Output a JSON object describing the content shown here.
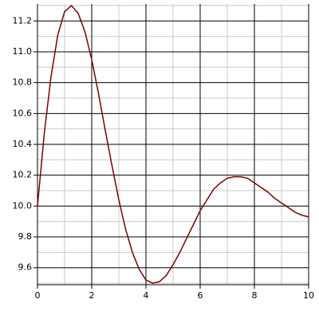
{
  "chart_data": {
    "type": "line",
    "x": [
      0,
      0.25,
      0.5,
      0.75,
      1,
      1.25,
      1.5,
      1.75,
      2,
      2.25,
      2.5,
      2.75,
      3,
      3.25,
      3.5,
      3.75,
      4,
      4.25,
      4.5,
      4.75,
      5,
      5.25,
      5.5,
      5.75,
      6,
      6.25,
      6.5,
      6.75,
      7,
      7.25,
      7.5,
      7.75,
      8,
      8.25,
      8.5,
      8.75,
      9,
      9.25,
      9.5,
      9.75,
      10
    ],
    "series": [
      {
        "color": "#7a0000",
        "values": [
          10.0,
          10.47,
          10.84,
          11.11,
          11.26,
          11.3,
          11.25,
          11.13,
          10.95,
          10.73,
          10.49,
          10.26,
          10.04,
          9.85,
          9.7,
          9.59,
          9.52,
          9.5,
          9.51,
          9.55,
          9.62,
          9.7,
          9.79,
          9.88,
          9.97,
          10.04,
          10.11,
          10.15,
          10.18,
          10.19,
          10.19,
          10.18,
          10.15,
          10.12,
          10.09,
          10.05,
          10.02,
          9.99,
          9.96,
          9.94,
          9.93
        ]
      }
    ],
    "xlim": [
      0,
      10
    ],
    "ylim": [
      9.49,
      11.31
    ],
    "xticks": [
      0,
      2,
      4,
      6,
      8,
      10
    ],
    "yticks": [
      9.6,
      9.8,
      {
        "value": 10,
        "label": "10.0"
      },
      10.2,
      10.4,
      10.6,
      10.8,
      {
        "value": 11,
        "label": "11.0"
      },
      11.2
    ],
    "xminor": [
      1,
      3,
      5,
      7,
      9
    ],
    "yminor": [
      9.5,
      9.7,
      9.9,
      10.1,
      10.3,
      10.5,
      10.7,
      10.9,
      11.1,
      11.3
    ],
    "grid": true
  }
}
